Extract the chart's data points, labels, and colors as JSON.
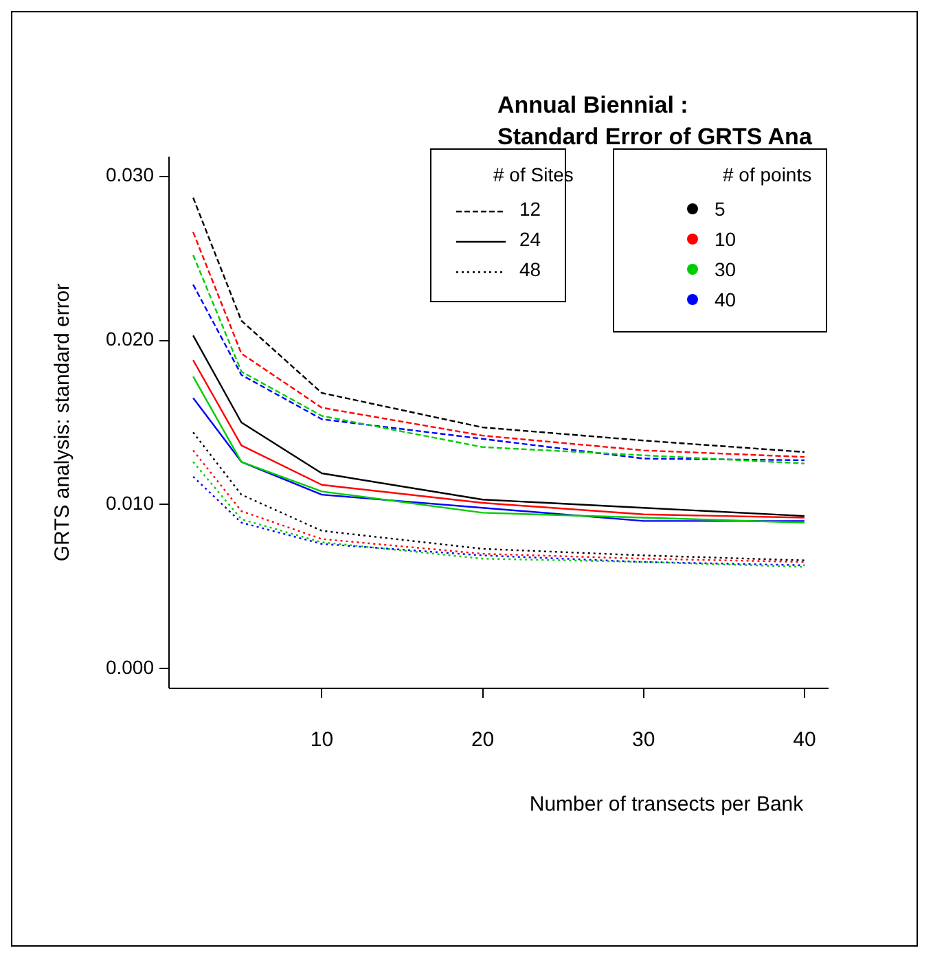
{
  "chart_data": {
    "type": "line",
    "title": "Annual Biennial :\nStandard Error of GRTS Ana",
    "xlabel": "Number of transects per Bank",
    "ylabel": "GRTS analysis: standard error",
    "x": [
      2,
      5,
      10,
      20,
      30,
      40
    ],
    "xlim": [
      0.5,
      41.5
    ],
    "xticks": [
      10,
      20,
      30,
      40
    ],
    "ylim": [
      -0.0012,
      0.0312
    ],
    "yticks": [
      {
        "value": 0,
        "label": "0.000"
      },
      {
        "value": 0.01,
        "label": "0.010"
      },
      {
        "value": 0.02,
        "label": "0.020"
      },
      {
        "value": 0.03,
        "label": "0.030"
      }
    ],
    "grid": false,
    "marker": "none",
    "annotations": [
      "# of Sites",
      "12",
      "24",
      "48",
      "# of points",
      "5",
      "10",
      "30",
      "40"
    ],
    "series": [
      {
        "color": "#000000",
        "line_style": "dashed",
        "values": [
          0.0287,
          0.0212,
          0.0168,
          0.0147,
          0.0139,
          0.0132
        ]
      },
      {
        "color": "#ff0000",
        "line_style": "dashed",
        "values": [
          0.0266,
          0.0192,
          0.0159,
          0.0142,
          0.0133,
          0.0129
        ]
      },
      {
        "color": "#00cd00",
        "line_style": "dashed",
        "values": [
          0.0252,
          0.0181,
          0.0154,
          0.0135,
          0.013,
          0.0125
        ]
      },
      {
        "color": "#0000ff",
        "line_style": "dashed",
        "values": [
          0.0234,
          0.0179,
          0.0152,
          0.014,
          0.0128,
          0.0127
        ]
      },
      {
        "color": "#000000",
        "line_style": "solid",
        "values": [
          0.0203,
          0.015,
          0.0119,
          0.0103,
          0.0098,
          0.0093
        ]
      },
      {
        "color": "#ff0000",
        "line_style": "solid",
        "values": [
          0.0188,
          0.0136,
          0.0112,
          0.0101,
          0.0094,
          0.0092
        ]
      },
      {
        "color": "#00cd00",
        "line_style": "solid",
        "values": [
          0.0178,
          0.0126,
          0.0108,
          0.0095,
          0.0092,
          0.0089
        ]
      },
      {
        "color": "#0000ff",
        "line_style": "solid",
        "values": [
          0.0165,
          0.0126,
          0.0106,
          0.0098,
          0.009,
          0.009
        ]
      },
      {
        "color": "#000000",
        "line_style": "dotted",
        "values": [
          0.0144,
          0.0106,
          0.0084,
          0.0073,
          0.0069,
          0.0066
        ]
      },
      {
        "color": "#ff0000",
        "line_style": "dotted",
        "values": [
          0.0133,
          0.0096,
          0.0079,
          0.007,
          0.0067,
          0.0065
        ]
      },
      {
        "color": "#00cd00",
        "line_style": "dotted",
        "values": [
          0.0126,
          0.0091,
          0.0077,
          0.0067,
          0.0065,
          0.0062
        ]
      },
      {
        "color": "#0000ff",
        "line_style": "dotted",
        "values": [
          0.0117,
          0.0089,
          0.0076,
          0.0069,
          0.0065,
          0.0063
        ]
      }
    ]
  }
}
